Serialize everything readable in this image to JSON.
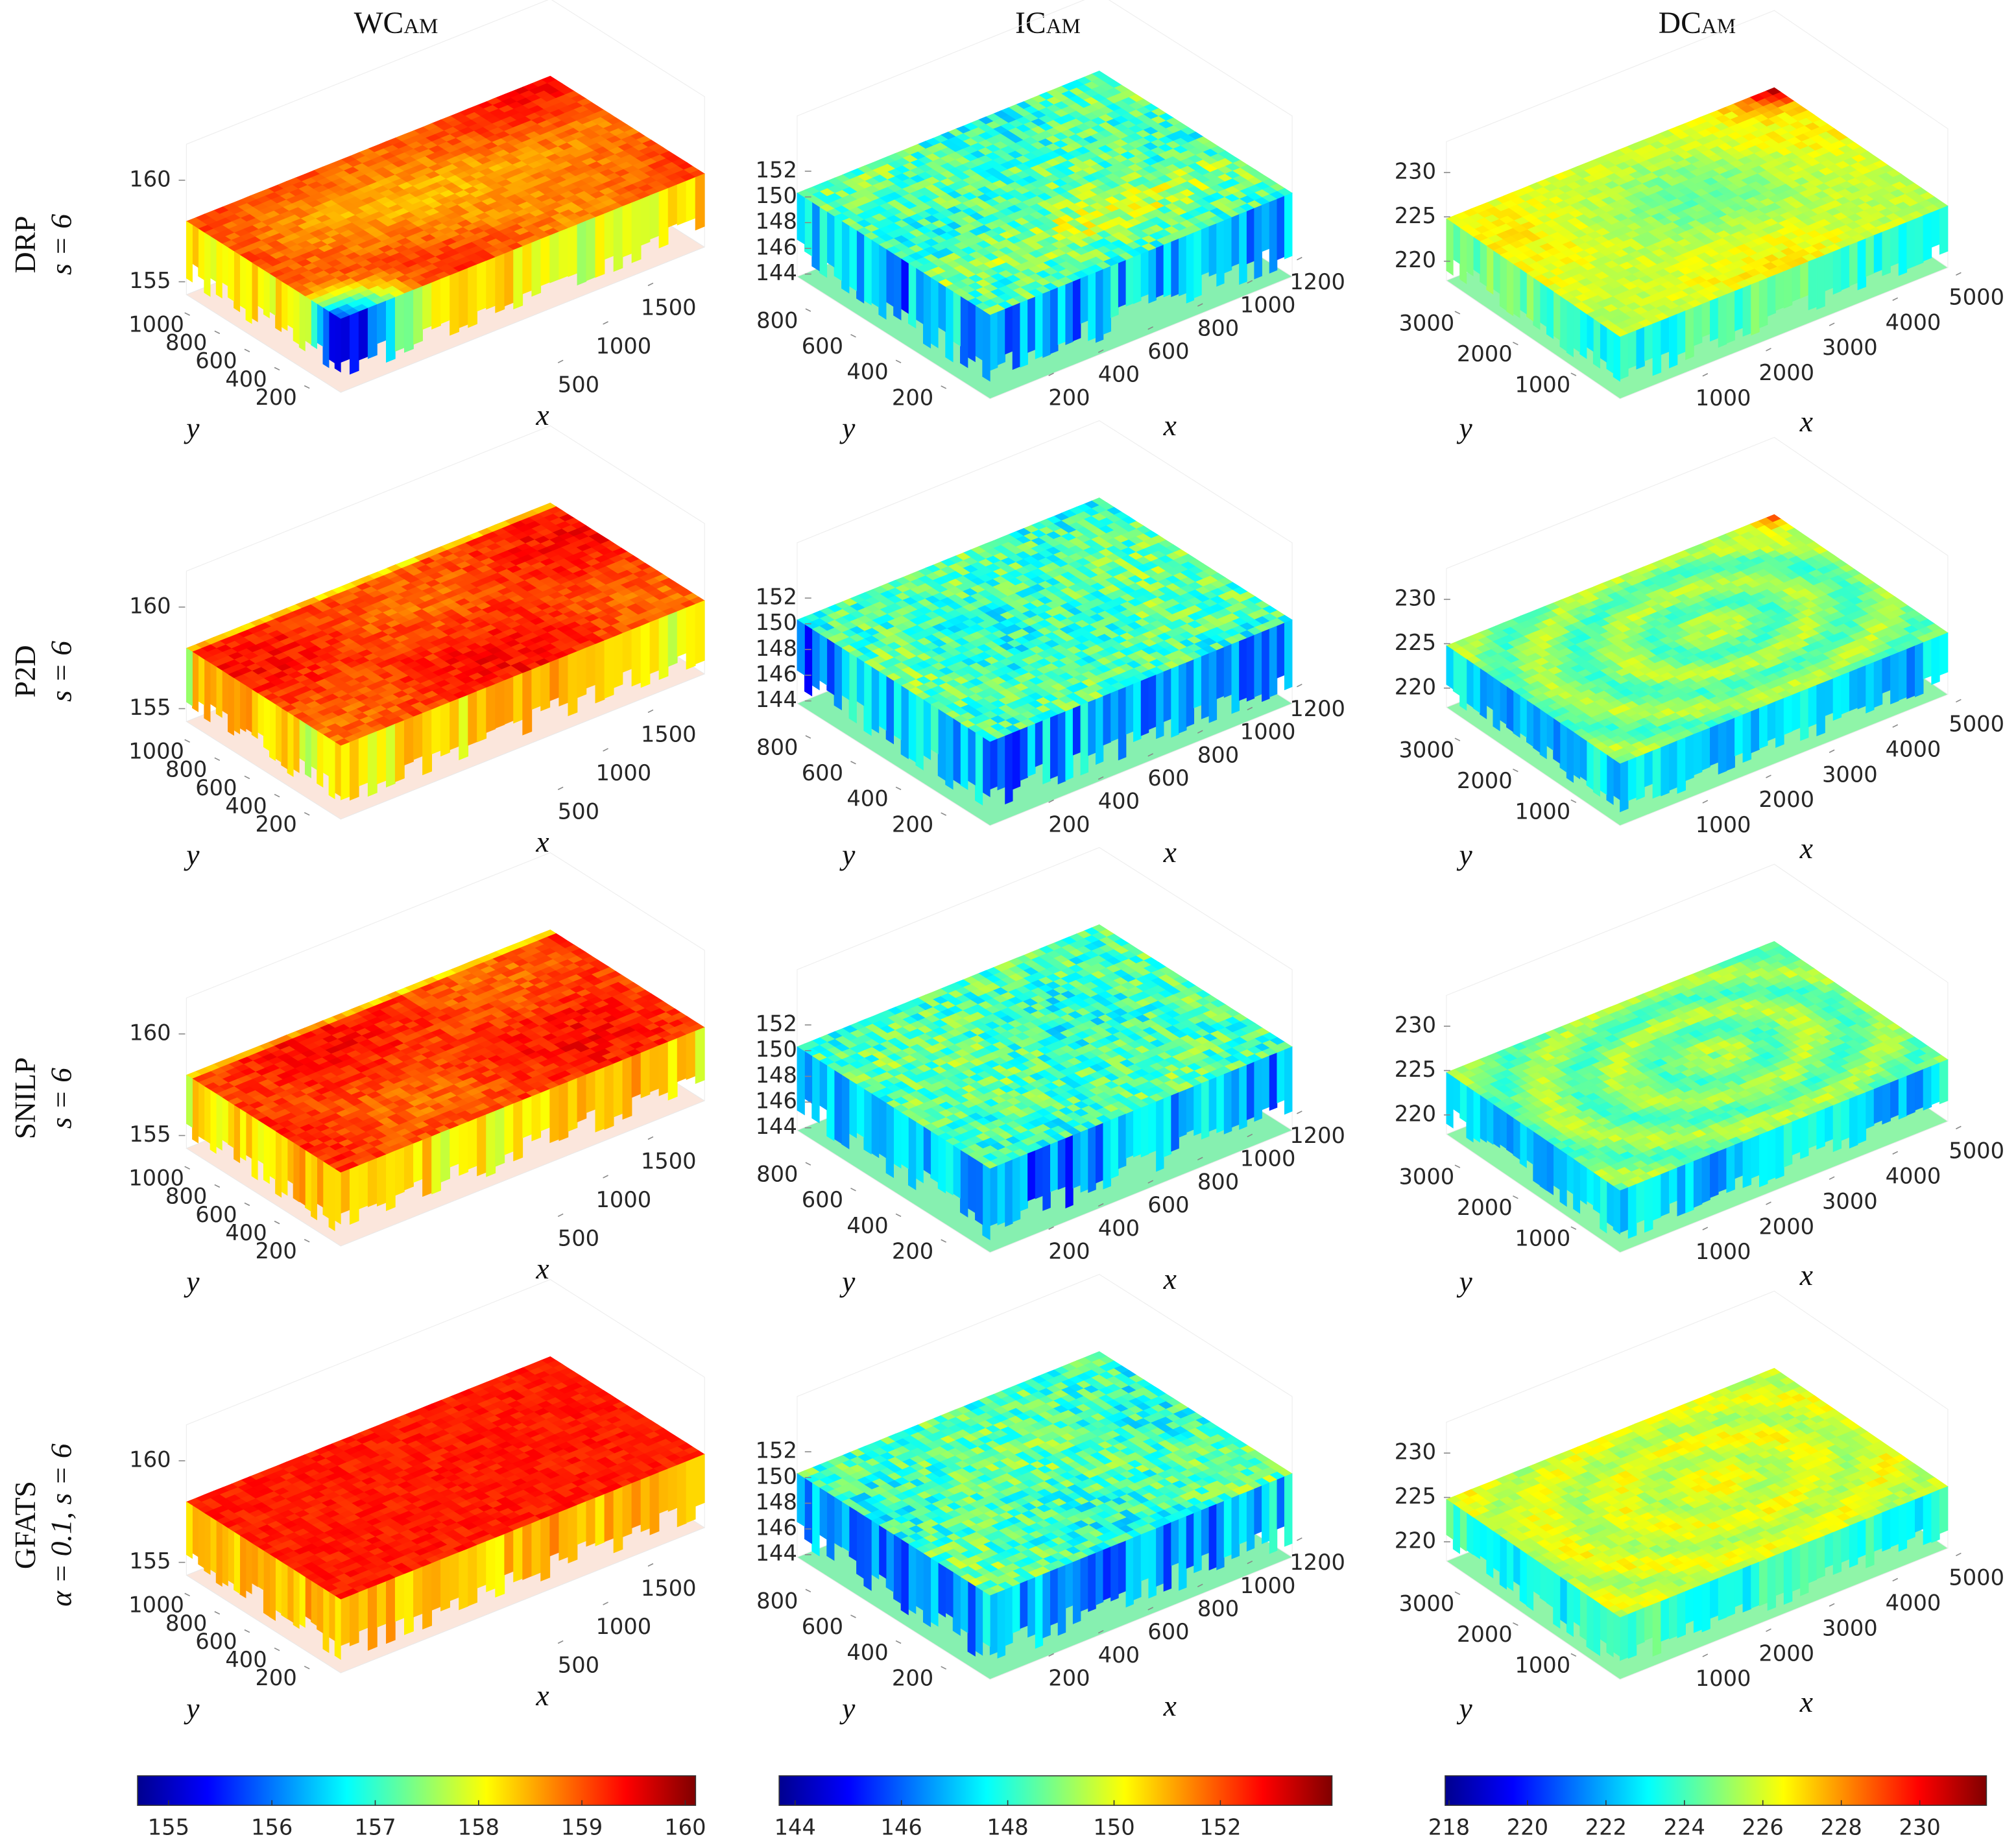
{
  "colormap": "jet",
  "x_label": "x",
  "y_label": "y",
  "rows": [
    {
      "method": "DRP",
      "parameters": "s = 6"
    },
    {
      "method": "P2D",
      "parameters": "s = 6"
    },
    {
      "method": "SNILP",
      "parameters": "s = 6"
    },
    {
      "method": "GFATS",
      "parameters": "α = 0.1, s = 6"
    }
  ],
  "columns": [
    {
      "title": "WCam",
      "xlim": [
        0,
        1700
      ],
      "xticks": [
        500,
        1000,
        1500
      ],
      "ylim": [
        0,
        1100
      ],
      "yticks": [
        200,
        400,
        600,
        800,
        1000
      ],
      "zlim": [
        154.5,
        161
      ],
      "zticks": [
        155,
        160
      ],
      "clim": [
        154.7,
        160.1
      ],
      "cticks": [
        155,
        156,
        157,
        158,
        159,
        160
      ]
    },
    {
      "title": "ICam",
      "xlim": [
        0,
        1300
      ],
      "xticks": [
        200,
        400,
        600,
        800,
        1000,
        1200
      ],
      "ylim": [
        0,
        900
      ],
      "yticks": [
        200,
        400,
        600,
        800
      ],
      "zlim": [
        143,
        154
      ],
      "zticks": [
        144,
        146,
        148,
        150,
        152
      ],
      "clim": [
        143.7,
        154.1
      ],
      "cticks": [
        144,
        146,
        148,
        150,
        152
      ]
    },
    {
      "title": "DCam",
      "xlim": [
        0,
        5400
      ],
      "xticks": [
        1000,
        2000,
        3000,
        4000,
        5000
      ],
      "ylim": [
        0,
        3500
      ],
      "yticks": [
        1000,
        2000,
        3000
      ],
      "zlim": [
        218,
        232
      ],
      "zticks": [
        220,
        225,
        230
      ],
      "clim": [
        217.9,
        231.7
      ],
      "cticks": [
        218,
        220,
        222,
        224,
        226,
        228,
        230
      ]
    }
  ]
}
